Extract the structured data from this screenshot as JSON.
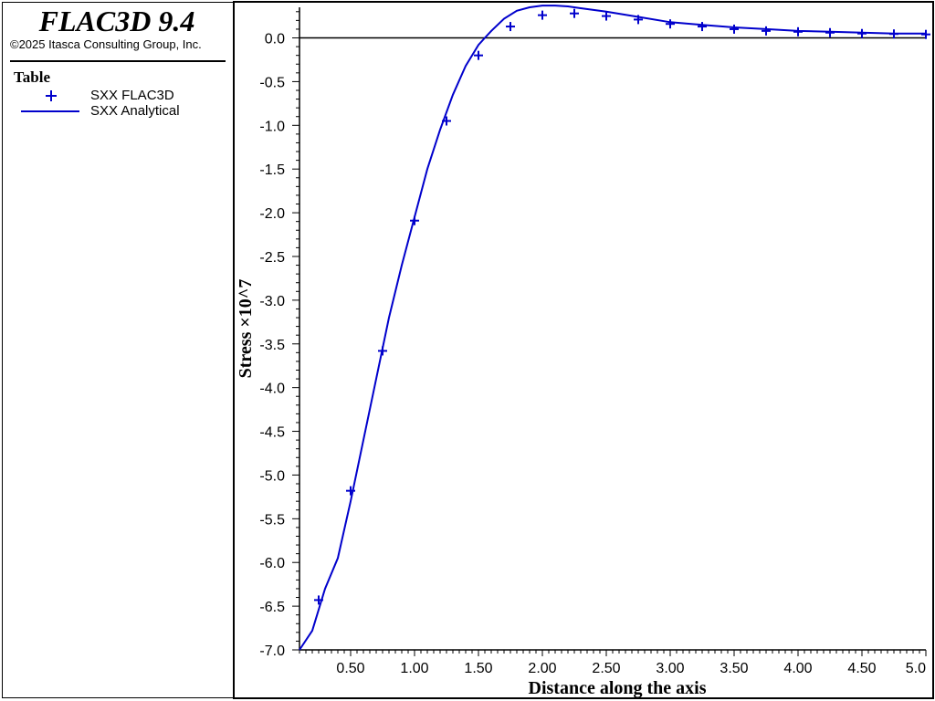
{
  "app": {
    "title": "FLAC3D 9.4",
    "copyright": "©2025 Itasca Consulting Group, Inc."
  },
  "legend": {
    "title": "Table",
    "items": [
      {
        "label": "SXX FLAC3D",
        "symbol": "plus",
        "color": "#0000cc"
      },
      {
        "label": "SXX Analytical",
        "symbol": "line",
        "color": "#0000cc"
      }
    ]
  },
  "chart_data": {
    "type": "line",
    "title": "",
    "xlabel": "Distance along the axis",
    "ylabel": "Stress ×10^7",
    "xlim": [
      0.1,
      5.0
    ],
    "ylim": [
      -7.0,
      0.35
    ],
    "x_ticks": [
      0.5,
      1.0,
      1.5,
      2.0,
      2.5,
      3.0,
      3.5,
      4.0,
      4.5,
      5.0
    ],
    "x_tick_labels": [
      "0.50",
      "1.00",
      "1.50",
      "2.00",
      "2.50",
      "3.00",
      "3.50",
      "4.00",
      "4.50",
      "5.0"
    ],
    "y_ticks": [
      0.0,
      -0.5,
      -1.0,
      -1.5,
      -2.0,
      -2.5,
      -3.0,
      -3.5,
      -4.0,
      -4.5,
      -5.0,
      -5.5,
      -6.0,
      -6.5,
      -7.0
    ],
    "y_tick_labels": [
      "0.0",
      "-0.5",
      "-1.0",
      "-1.5",
      "-2.0",
      "-2.5",
      "-3.0",
      "-3.5",
      "-4.0",
      "-4.5",
      "-5.0",
      "-5.5",
      "-6.0",
      "-6.5",
      "-7.0"
    ],
    "zero_line": true,
    "grid": false,
    "series": [
      {
        "name": "SXX FLAC3D",
        "style": "plus",
        "color": "#0000cc",
        "x": [
          0.25,
          0.5,
          0.75,
          1.0,
          1.25,
          1.5,
          1.75,
          2.0,
          2.25,
          2.5,
          2.75,
          3.0,
          3.25,
          3.5,
          3.75,
          4.0,
          4.25,
          4.5,
          4.75,
          5.0
        ],
        "y": [
          -6.43,
          -5.18,
          -3.58,
          -2.09,
          -0.95,
          -0.2,
          0.13,
          0.26,
          0.28,
          0.25,
          0.21,
          0.16,
          0.13,
          0.1,
          0.08,
          0.07,
          0.06,
          0.05,
          0.045,
          0.04
        ]
      },
      {
        "name": "SXX Analytical",
        "style": "line",
        "color": "#0000cc",
        "x": [
          0.1,
          0.2,
          0.3,
          0.4,
          0.5,
          0.6,
          0.7,
          0.8,
          0.9,
          1.0,
          1.1,
          1.2,
          1.3,
          1.4,
          1.5,
          1.55,
          1.6,
          1.7,
          1.8,
          1.9,
          2.0,
          2.1,
          2.2,
          2.3,
          2.4,
          2.5,
          2.75,
          3.0,
          3.25,
          3.5,
          3.75,
          4.0,
          4.25,
          4.5,
          4.75,
          5.0
        ],
        "y": [
          -7.0,
          -6.78,
          -6.3,
          -5.95,
          -5.3,
          -4.6,
          -3.9,
          -3.2,
          -2.6,
          -2.05,
          -1.5,
          -1.05,
          -0.65,
          -0.32,
          -0.08,
          0.0,
          0.08,
          0.22,
          0.31,
          0.35,
          0.37,
          0.37,
          0.36,
          0.34,
          0.32,
          0.3,
          0.24,
          0.18,
          0.15,
          0.12,
          0.1,
          0.08,
          0.07,
          0.06,
          0.05,
          0.05
        ]
      }
    ]
  }
}
